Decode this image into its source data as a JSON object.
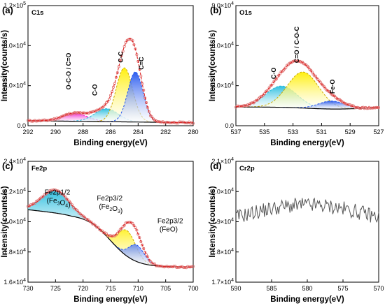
{
  "chart_data": [
    {
      "panel": "(a)",
      "element": "C1s",
      "type": "line",
      "xlabel": "Binding energy(eV)",
      "ylabel": "Intensity(counts/s)",
      "xlim": [
        292,
        280
      ],
      "ylim": [
        0,
        120000
      ],
      "xticks": [
        "292",
        "290",
        "288",
        "286",
        "284",
        "282",
        "280"
      ],
      "yticks": [
        "0.0",
        "4.0×10⁴",
        "8.0×10⁴",
        "1.2×10⁵"
      ],
      "peak_labels": [
        "O-C-O / C=O",
        "C-O",
        "C-C",
        "C=C"
      ],
      "peaks": [
        {
          "name": "O-C-O / C=O",
          "center": 288.6,
          "height": 8000,
          "width": 0.9,
          "color": "#ee22cc"
        },
        {
          "name": "C-O",
          "center": 286.3,
          "height": 13000,
          "width": 0.85,
          "color": "#22bbdd"
        },
        {
          "name": "C-C",
          "center": 285.0,
          "height": 54000,
          "width": 0.6,
          "color": "#ffee00"
        },
        {
          "name": "C=C",
          "center": 284.2,
          "height": 50000,
          "width": 0.55,
          "color": "#2255ee"
        }
      ],
      "baseline": [
        [
          292,
          5000
        ],
        [
          280,
          3000
        ]
      ]
    },
    {
      "panel": "(b)",
      "element": "O1s",
      "type": "line",
      "xlabel": "Binding energy(eV)",
      "ylabel": "Intensity(counts/s)",
      "xlim": [
        537,
        527
      ],
      "ylim": [
        0,
        90000
      ],
      "xticks": [
        "537",
        "535",
        "533",
        "531",
        "529",
        "527"
      ],
      "yticks": [
        "0.0",
        "3.0×10⁴",
        "6.0×10⁴",
        "9.0×10⁴"
      ],
      "peak_labels": [
        "C-O",
        "C=O / C-O-C",
        "Fe-O"
      ],
      "peaks": [
        {
          "name": "C-O",
          "center": 533.8,
          "height": 16000,
          "width": 1.1,
          "color": "#22bbdd"
        },
        {
          "name": "C=O / C-O-C",
          "center": 532.3,
          "height": 27000,
          "width": 1.1,
          "color": "#ffee00"
        },
        {
          "name": "Fe-O",
          "center": 530.3,
          "height": 6000,
          "width": 0.9,
          "color": "#2255ee"
        }
      ],
      "baseline": [
        [
          537,
          14000
        ],
        [
          527,
          14000
        ]
      ]
    },
    {
      "panel": "(c)",
      "element": "Fe2p",
      "type": "line",
      "xlabel": "Binding energy(eV)",
      "ylabel": "Intensity(counts/s)",
      "xlim": [
        730,
        700
      ],
      "ylim": [
        16000,
        24000
      ],
      "xticks": [
        "730",
        "725",
        "720",
        "715",
        "710",
        "705",
        "700"
      ],
      "yticks": [
        "1.6×10⁴",
        "1.8×10⁴",
        "2.0×10⁴",
        "2.2×10⁴",
        "2.4×10⁴"
      ],
      "annotations": [
        {
          "line1": "Fe2p1/2",
          "line2": "(Fe₃O₄)"
        },
        {
          "line1": "Fe2p3/2",
          "line2": "(Fe₂O₃)"
        },
        {
          "line1": "Fe2p3/2",
          "line2": "(FeO)"
        }
      ],
      "peaks": [
        {
          "name": "Fe2p1/2",
          "center": 725,
          "height": 1500,
          "width": 2.5,
          "color": "#22bbdd"
        },
        {
          "name": "Fe2p3/2 Fe2O3",
          "center": 712.0,
          "height": 1700,
          "width": 1.6,
          "color": "#ffee00"
        },
        {
          "name": "Fe2p3/2 FeO",
          "center": 710.3,
          "height": 1100,
          "width": 1.4,
          "color": "#2255ee"
        }
      ]
    },
    {
      "panel": "(d)",
      "element": "Cr2p",
      "type": "line",
      "xlabel": "Binding energy(eV)",
      "ylabel": "Intensity(counts/s)",
      "xlim": [
        590,
        570
      ],
      "ylim": [
        17000,
        21000
      ],
      "xticks": [
        "590",
        "585",
        "580",
        "575",
        "570"
      ],
      "yticks": [
        "1.7×10⁴",
        "1.8×10⁴",
        "1.9×10⁴",
        "2.0×10⁴",
        "2.1×10⁴"
      ],
      "level_start": 19150,
      "level_mid": 19550,
      "level_end": 19100
    }
  ]
}
